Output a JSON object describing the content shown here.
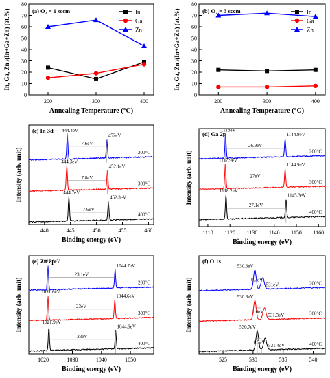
{
  "figure": {
    "panel_count": 6
  },
  "chart_data": [
    {
      "type": "line",
      "tag": "(a) O",
      "tag_sub": "2",
      "tag_rest": " = 1 sccm",
      "xlabel": "Annealing Temperature  (°C)",
      "ylabel": "In, Ga, Zn /(In+Ga+Zn) (at.%)",
      "x": [
        200,
        300,
        400
      ],
      "xlim": [
        160,
        420
      ],
      "ylim": [
        0,
        80
      ],
      "xticks": [
        200,
        300,
        400
      ],
      "yticks": [
        0,
        10,
        20,
        30,
        40,
        50,
        60,
        70,
        80
      ],
      "legend_position": "top-right",
      "series": [
        {
          "name": "In",
          "marker": "square",
          "color": "#000000",
          "values": [
            24,
            14,
            29
          ]
        },
        {
          "name": "Ga",
          "marker": "circle",
          "color": "#ff0000",
          "values": [
            15,
            19,
            27
          ]
        },
        {
          "name": "Zn",
          "marker": "triangle",
          "color": "#0000ff",
          "values": [
            60,
            66,
            43
          ]
        }
      ]
    },
    {
      "type": "line",
      "tag": "(b) O",
      "tag_sub": "2",
      "tag_rest": " = 3 sccm",
      "xlabel": "Annealing Temperature  (°C)",
      "ylabel": "In, Ga, Zn /(In+Ga+Zn) (at.%)",
      "x": [
        200,
        300,
        400
      ],
      "xlim": [
        160,
        420
      ],
      "ylim": [
        0,
        80
      ],
      "xticks": [
        200,
        300,
        400
      ],
      "yticks": [
        0,
        10,
        20,
        30,
        40,
        50,
        60,
        70,
        80
      ],
      "legend_position": "top-right",
      "series": [
        {
          "name": "In",
          "marker": "square",
          "color": "#000000",
          "values": [
            22,
            21,
            22
          ]
        },
        {
          "name": "Ga",
          "marker": "circle",
          "color": "#ff0000",
          "values": [
            7,
            7,
            8
          ]
        },
        {
          "name": "Zn",
          "marker": "triangle",
          "color": "#0000ff",
          "values": [
            70,
            72,
            69
          ]
        }
      ]
    },
    {
      "type": "line",
      "tag": "(c) In  3d",
      "xlabel": "Binding energy (eV)",
      "ylabel": "Intensity (arb. unit)",
      "xlim": [
        437,
        461
      ],
      "xticks": [
        440,
        445,
        450,
        455,
        460
      ],
      "peak_width": 0.55,
      "spectra": [
        {
          "temperature": "200°C",
          "color": "#0000ff",
          "baseline": 0.06,
          "peaks": [
            {
              "center": 444.4,
              "label": "444.4eV"
            },
            {
              "center": 452.0,
              "label": "452eV"
            }
          ],
          "split_label": "7.6eV",
          "split_y": 0.58
        },
        {
          "temperature": "300°C",
          "color": "#ff0000",
          "baseline": 0.05,
          "peaks": [
            {
              "center": 444.3,
              "label": "444.3eV"
            },
            {
              "center": 452.1,
              "label": "452.1eV"
            }
          ],
          "split_label": "7.8eV",
          "split_y": 0.45
        },
        {
          "temperature": "400°C",
          "color": "#000000",
          "baseline": 0.05,
          "peaks": [
            {
              "center": 444.7,
              "label": "444.7eV"
            },
            {
              "center": 452.3,
              "label": "452.3eV"
            }
          ],
          "split_label": "7.6eV",
          "split_y": 0.42
        }
      ]
    },
    {
      "type": "line",
      "tag": "(d) Ga  2p",
      "xlabel": "Binding energy (eV)",
      "ylabel": "Intensity (arb. unit)",
      "xlim": [
        1106,
        1163
      ],
      "xticks": [
        1110,
        1120,
        1130,
        1140,
        1150,
        1160
      ],
      "peak_width": 0.55,
      "spectra": [
        {
          "temperature": "200°C",
          "color": "#0000ff",
          "baseline": 0.22,
          "peaks": [
            {
              "center": 1118.0,
              "label": "1118eV"
            },
            {
              "center": 1144.9,
              "label": "1144.9eV"
            }
          ],
          "split_label": "26.9eV",
          "split_y": 0.62
        },
        {
          "temperature": "300°C",
          "color": "#ff0000",
          "baseline": 0.22,
          "peaks": [
            {
              "center": 1117.9,
              "label": "1117.9eV"
            },
            {
              "center": 1144.9,
              "label": "1144.9eV"
            }
          ],
          "split_label": "27eV",
          "split_y": 0.62
        },
        {
          "temperature": "400°C",
          "color": "#000000",
          "baseline": 0.22,
          "peaks": [
            {
              "center": 1118.2,
              "label": "1118.2eV"
            },
            {
              "center": 1145.3,
              "label": "1145.3eV"
            }
          ],
          "split_label": "27.1eV",
          "split_y": 0.66
        }
      ]
    },
    {
      "type": "line",
      "tag": "(e) Zn  2p",
      "xlabel": "Binding energy (eV)",
      "ylabel": "Intensity (arb. unit)",
      "xlim": [
        1015,
        1058
      ],
      "xticks": [
        1020,
        1030,
        1040,
        1050
      ],
      "peak_width": 0.55,
      "spectra": [
        {
          "temperature": "200°C",
          "color": "#0000ff",
          "baseline": 0.06,
          "peaks": [
            {
              "center": 1021.6,
              "label": "1021.6eV"
            },
            {
              "center": 1044.7,
              "label": "1044.7eV"
            }
          ],
          "split_label": "23.1eV",
          "split_y": 0.55
        },
        {
          "temperature": "300°C",
          "color": "#ff0000",
          "baseline": 0.06,
          "peaks": [
            {
              "center": 1021.6,
              "label": "1021.6eV"
            },
            {
              "center": 1044.6,
              "label": "1044.6eV"
            }
          ],
          "split_label": "23eV",
          "split_y": 0.5
        },
        {
          "temperature": "400°C",
          "color": "#000000",
          "baseline": 0.06,
          "peaks": [
            {
              "center": 1021.9,
              "label": "1021.9eV"
            },
            {
              "center": 1044.9,
              "label": "1044.9eV"
            }
          ],
          "split_label": "23eV",
          "split_y": 0.5
        }
      ]
    },
    {
      "type": "line",
      "tag": "(f) O  1s",
      "xlabel": "Binding energy (eV)",
      "ylabel": "Intensity (arb. unit)",
      "xlim": [
        521,
        542
      ],
      "xticks": [
        525,
        530,
        535,
        540
      ],
      "peak_width": 1.1,
      "spectra": [
        {
          "temperature": "200°C",
          "color": "#0000ff",
          "baseline": 0.04,
          "peaks": [
            {
              "center": 530.3,
              "label": "530.3eV"
            },
            {
              "center": 531.0,
              "label": "531eV"
            }
          ],
          "split_label": "0.7eV",
          "split_y": 0.6
        },
        {
          "temperature": "300°C",
          "color": "#ff0000",
          "baseline": 0.04,
          "peaks": [
            {
              "center": 530.3,
              "label": "530.3eV"
            },
            {
              "center": 531.3,
              "label": "531.3eV"
            }
          ],
          "split_label": "1.0eV",
          "split_y": 0.55
        },
        {
          "temperature": "400°C",
          "color": "#000000",
          "baseline": 0.04,
          "peaks": [
            {
              "center": 530.7,
              "label": "530.7eV"
            },
            {
              "center": 531.4,
              "label": "531.4eV"
            }
          ],
          "split_label": "0.7eV",
          "split_y": 0.55
        }
      ]
    }
  ]
}
